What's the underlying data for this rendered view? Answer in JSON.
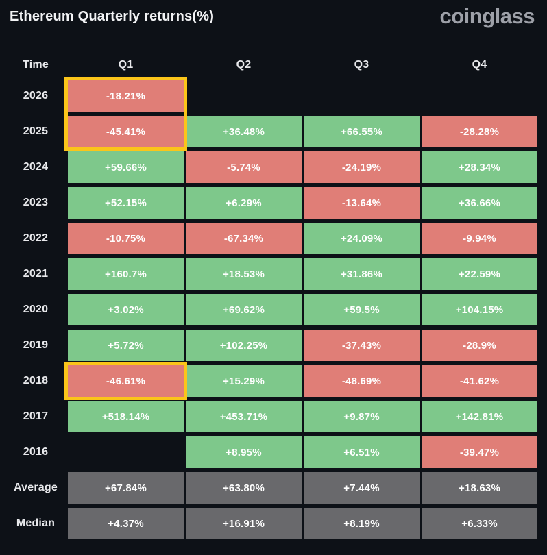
{
  "page": {
    "title": "Ethereum Quarterly returns(%)",
    "logo": "coinglass"
  },
  "colors": {
    "background": "#0d1117",
    "green": "#7ec88b",
    "red": "#e07e77",
    "gray": "#69696c",
    "highlight": "#fbc51a",
    "label_text": "#e8e9ec",
    "logo_text": "#9da0a8"
  },
  "table": {
    "columns": [
      "Time",
      "Q1",
      "Q2",
      "Q3",
      "Q4"
    ],
    "rows": [
      {
        "label": "2026",
        "values": [
          "-18.21%",
          "",
          "",
          ""
        ],
        "tones": [
          "red",
          "none",
          "none",
          "none"
        ]
      },
      {
        "label": "2025",
        "values": [
          "-45.41%",
          "+36.48%",
          "+66.55%",
          "-28.28%"
        ],
        "tones": [
          "red",
          "green",
          "green",
          "red"
        ]
      },
      {
        "label": "2024",
        "values": [
          "+59.66%",
          "-5.74%",
          "-24.19%",
          "+28.34%"
        ],
        "tones": [
          "green",
          "red",
          "red",
          "green"
        ]
      },
      {
        "label": "2023",
        "values": [
          "+52.15%",
          "+6.29%",
          "-13.64%",
          "+36.66%"
        ],
        "tones": [
          "green",
          "green",
          "red",
          "green"
        ]
      },
      {
        "label": "2022",
        "values": [
          "-10.75%",
          "-67.34%",
          "+24.09%",
          "-9.94%"
        ],
        "tones": [
          "red",
          "red",
          "green",
          "red"
        ]
      },
      {
        "label": "2021",
        "values": [
          "+160.7%",
          "+18.53%",
          "+31.86%",
          "+22.59%"
        ],
        "tones": [
          "green",
          "green",
          "green",
          "green"
        ]
      },
      {
        "label": "2020",
        "values": [
          "+3.02%",
          "+69.62%",
          "+59.5%",
          "+104.15%"
        ],
        "tones": [
          "green",
          "green",
          "green",
          "green"
        ]
      },
      {
        "label": "2019",
        "values": [
          "+5.72%",
          "+102.25%",
          "-37.43%",
          "-28.9%"
        ],
        "tones": [
          "green",
          "green",
          "red",
          "red"
        ]
      },
      {
        "label": "2018",
        "values": [
          "-46.61%",
          "+15.29%",
          "-48.69%",
          "-41.62%"
        ],
        "tones": [
          "red",
          "green",
          "red",
          "red"
        ]
      },
      {
        "label": "2017",
        "values": [
          "+518.14%",
          "+453.71%",
          "+9.87%",
          "+142.81%"
        ],
        "tones": [
          "green",
          "green",
          "green",
          "green"
        ]
      },
      {
        "label": "2016",
        "values": [
          "",
          "+8.95%",
          "+6.51%",
          "-39.47%"
        ],
        "tones": [
          "none",
          "green",
          "green",
          "red"
        ]
      },
      {
        "label": "Average",
        "values": [
          "+67.84%",
          "+63.80%",
          "+7.44%",
          "+18.63%"
        ],
        "tones": [
          "gray",
          "gray",
          "gray",
          "gray"
        ]
      },
      {
        "label": "Median",
        "values": [
          "+4.37%",
          "+16.91%",
          "+8.19%",
          "+6.33%"
        ],
        "tones": [
          "gray",
          "gray",
          "gray",
          "gray"
        ]
      }
    ],
    "highlighted_cells": [
      "2026 Q1",
      "2025 Q1",
      "2018 Q1"
    ]
  },
  "chart_data": {
    "type": "heatmap",
    "title": "Ethereum Quarterly returns(%)",
    "columns": [
      "Q1",
      "Q2",
      "Q3",
      "Q4"
    ],
    "rows": [
      "2026",
      "2025",
      "2024",
      "2023",
      "2022",
      "2021",
      "2020",
      "2019",
      "2018",
      "2017",
      "2016",
      "Average",
      "Median"
    ],
    "values_pct": [
      [
        -18.21,
        null,
        null,
        null
      ],
      [
        -45.41,
        36.48,
        66.55,
        -28.28
      ],
      [
        59.66,
        -5.74,
        -24.19,
        28.34
      ],
      [
        52.15,
        6.29,
        -13.64,
        36.66
      ],
      [
        -10.75,
        -67.34,
        24.09,
        -9.94
      ],
      [
        160.7,
        18.53,
        31.86,
        22.59
      ],
      [
        3.02,
        69.62,
        59.5,
        104.15
      ],
      [
        5.72,
        102.25,
        -37.43,
        -28.9
      ],
      [
        -46.61,
        15.29,
        -48.69,
        -41.62
      ],
      [
        518.14,
        453.71,
        9.87,
        142.81
      ],
      [
        null,
        8.95,
        6.51,
        -39.47
      ],
      [
        67.84,
        63.8,
        7.44,
        18.63
      ],
      [
        4.37,
        16.91,
        8.19,
        6.33
      ]
    ],
    "color_rule": "green = positive return, red = negative return, gray = Average/Median summary rows, blank = no data",
    "highlighted_cells": [
      "2026 Q1",
      "2025 Q1",
      "2018 Q1"
    ],
    "legend_position": "none",
    "grid": false
  }
}
